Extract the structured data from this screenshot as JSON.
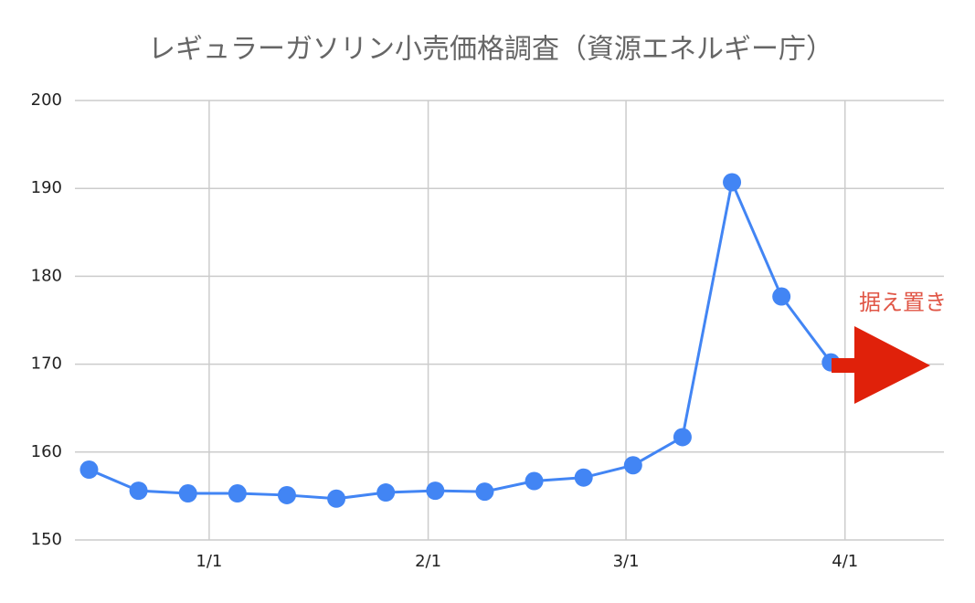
{
  "chart_data": {
    "type": "line",
    "title": "レギュラーガソリン小売価格調査（資源エネルギー庁）",
    "annotation": "据え置き",
    "x": [
      "12/15",
      "12/22",
      "12/29",
      "1/5",
      "1/12",
      "1/19",
      "1/26",
      "2/2",
      "2/9",
      "2/16",
      "2/23",
      "3/2",
      "3/9",
      "3/16",
      "3/23",
      "3/30"
    ],
    "series": [
      {
        "name": "レギュラー",
        "color": "#4285f4",
        "values": [
          158.0,
          155.6,
          155.3,
          155.3,
          155.1,
          154.7,
          155.4,
          155.6,
          155.5,
          156.7,
          157.1,
          158.5,
          161.7,
          190.7,
          177.7,
          170.2
        ]
      }
    ],
    "xlim": [
      "12/13",
      "4/15"
    ],
    "xticks": [
      "1/1",
      "2/1",
      "3/1",
      "4/1"
    ],
    "ylim": [
      150,
      200
    ],
    "yticks": [
      150,
      160,
      170,
      180,
      190,
      200
    ],
    "grid": true,
    "legend": false
  }
}
